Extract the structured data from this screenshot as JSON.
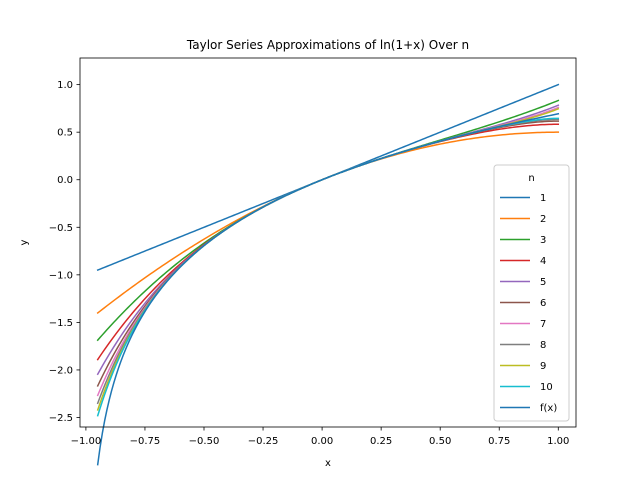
{
  "chart_data": {
    "type": "line",
    "title": "Taylor Series Approximations of ln(1+x) Over n",
    "xlabel": "x",
    "ylabel": "y",
    "xlim": [
      -1.025,
      1.075
    ],
    "ylim": [
      -2.6,
      1.28
    ],
    "x_ticks": [
      -1.0,
      -0.75,
      -0.5,
      -0.25,
      0.0,
      0.25,
      0.5,
      0.75,
      1.0
    ],
    "x_tick_labels": [
      "−1.00",
      "−0.75",
      "−0.50",
      "−0.25",
      "0.00",
      "0.25",
      "0.50",
      "0.75",
      "1.00"
    ],
    "y_ticks": [
      -2.5,
      -2.0,
      -1.5,
      -1.0,
      -0.5,
      0.0,
      0.5,
      1.0
    ],
    "y_tick_labels": [
      "−2.5",
      "−2.0",
      "−1.5",
      "−1.0",
      "−0.5",
      "0.0",
      "0.5",
      "1.0"
    ],
    "grid": false,
    "legend_title": "n",
    "legend_position": "lower-right",
    "x_range": [
      -0.95,
      1.0
    ],
    "series": [
      {
        "name": "1",
        "color": "#1f77b4",
        "approx_order": 1
      },
      {
        "name": "2",
        "color": "#ff7f0e",
        "approx_order": 2
      },
      {
        "name": "3",
        "color": "#2ca02c",
        "approx_order": 3
      },
      {
        "name": "4",
        "color": "#d62728",
        "approx_order": 4
      },
      {
        "name": "5",
        "color": "#9467bd",
        "approx_order": 5
      },
      {
        "name": "6",
        "color": "#8c564b",
        "approx_order": 6
      },
      {
        "name": "7",
        "color": "#e377c2",
        "approx_order": 7
      },
      {
        "name": "8",
        "color": "#7f7f7f",
        "approx_order": 8
      },
      {
        "name": "9",
        "color": "#bcbd22",
        "approx_order": 9
      },
      {
        "name": "10",
        "color": "#17becf",
        "approx_order": 10
      },
      {
        "name": "f(x)",
        "color": "#1f77b4",
        "approx_order": null
      }
    ]
  }
}
